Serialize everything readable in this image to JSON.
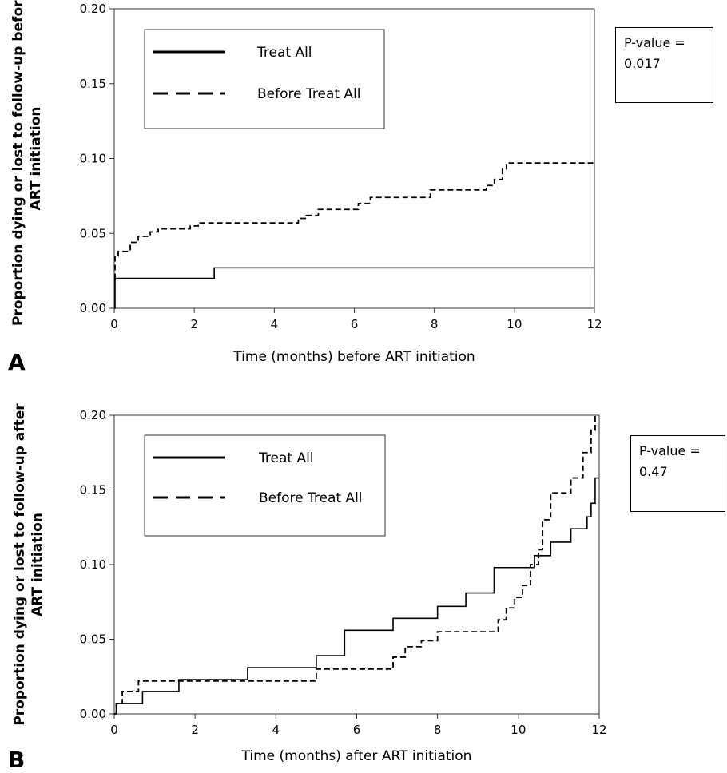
{
  "chart_data": [
    {
      "type": "line",
      "panel_label": "A",
      "xlabel": "Time (months) before ART initiation",
      "ylabel": "Proportion dying or lost to follow-up before ART initiation",
      "xlim": [
        0,
        12
      ],
      "ylim": [
        0,
        0.2
      ],
      "x_ticks": [
        "0",
        "2",
        "4",
        "6",
        "8",
        "10",
        "12"
      ],
      "y_ticks": [
        "0.00",
        "0.05",
        "0.10",
        "0.15",
        "0.20"
      ],
      "grid": false,
      "legend_position": "top-left",
      "annotation": {
        "line1": "P-value =",
        "line2": "0.017"
      },
      "series": [
        {
          "name": "Treat All",
          "style": "solid",
          "x": [
            0,
            0.02,
            2.5,
            12
          ],
          "y": [
            0,
            0.02,
            0.027,
            0.027
          ]
        },
        {
          "name": "Before Treat All",
          "style": "dashed",
          "x": [
            0,
            0.02,
            0.1,
            0.4,
            0.6,
            0.9,
            1.1,
            1.9,
            2.1,
            4.6,
            4.8,
            5.1,
            6.1,
            6.4,
            7.9,
            9.3,
            9.5,
            9.7,
            9.8,
            12
          ],
          "y": [
            0.02,
            0.035,
            0.038,
            0.044,
            0.048,
            0.051,
            0.053,
            0.055,
            0.057,
            0.06,
            0.062,
            0.066,
            0.07,
            0.074,
            0.079,
            0.082,
            0.086,
            0.093,
            0.097,
            0.097
          ]
        }
      ]
    },
    {
      "type": "line",
      "panel_label": "B",
      "xlabel": "Time (months) after ART initiation",
      "ylabel": "Proportion dying or lost to follow-up after ART initiation",
      "xlim": [
        0,
        12
      ],
      "ylim": [
        0,
        0.2
      ],
      "x_ticks": [
        "0",
        "2",
        "4",
        "6",
        "8",
        "10",
        "12"
      ],
      "y_ticks": [
        "0.00",
        "0.05",
        "0.10",
        "0.15",
        "0.20"
      ],
      "grid": false,
      "legend_position": "top-left",
      "annotation": {
        "line1": "P-value =",
        "line2": "0.47"
      },
      "series": [
        {
          "name": "Treat All",
          "style": "solid",
          "x": [
            0,
            0.05,
            0.7,
            1.6,
            3.3,
            5.0,
            5.7,
            6.9,
            8.0,
            8.7,
            9.4,
            10.4,
            10.6,
            10.8,
            11.3,
            11.7,
            11.8,
            11.9,
            12
          ],
          "y": [
            0,
            0.007,
            0.015,
            0.023,
            0.031,
            0.039,
            0.056,
            0.064,
            0.072,
            0.081,
            0.098,
            0.106,
            0.106,
            0.115,
            0.124,
            0.132,
            0.141,
            0.158,
            0.158
          ]
        },
        {
          "name": "Before Treat All",
          "style": "dashed",
          "x": [
            0,
            0.05,
            0.2,
            0.6,
            5.0,
            6.9,
            7.2,
            7.6,
            8.0,
            9.5,
            9.7,
            9.9,
            10.1,
            10.3,
            10.5,
            10.6,
            10.8,
            11.3,
            11.6,
            11.8,
            11.9
          ],
          "y": [
            0,
            0.007,
            0.015,
            0.022,
            0.03,
            0.038,
            0.045,
            0.049,
            0.055,
            0.063,
            0.071,
            0.078,
            0.086,
            0.1,
            0.11,
            0.13,
            0.148,
            0.158,
            0.175,
            0.19,
            0.2
          ]
        }
      ]
    }
  ]
}
